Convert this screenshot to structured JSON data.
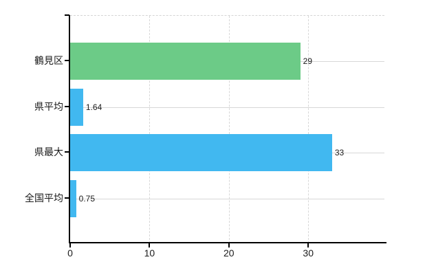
{
  "chart_data": {
    "type": "bar",
    "orientation": "horizontal",
    "title": "",
    "xlabel": "",
    "ylabel": "",
    "categories": [
      "鶴見区",
      "県平均",
      "県最大",
      "全国平均"
    ],
    "values": [
      29,
      1.64,
      33,
      0.75
    ],
    "value_labels": [
      "29",
      "1.64",
      "33",
      "0.75"
    ],
    "bar_colors": [
      "#6ccb87",
      "#41b8f0",
      "#41b8f0",
      "#41b8f0"
    ],
    "x_ticks": [
      0,
      10,
      20,
      30
    ],
    "x_tick_labels": [
      "0",
      "10",
      "20",
      "30"
    ],
    "xlim": [
      0,
      39.6
    ],
    "grid": true,
    "legend": false,
    "colors": {
      "green_bar": "#6ccb87",
      "blue_bar": "#41b8f0",
      "gridline": "#d7d7d7",
      "axis": "#000000",
      "text": "#1a1a1a",
      "background": "#ffffff"
    }
  }
}
